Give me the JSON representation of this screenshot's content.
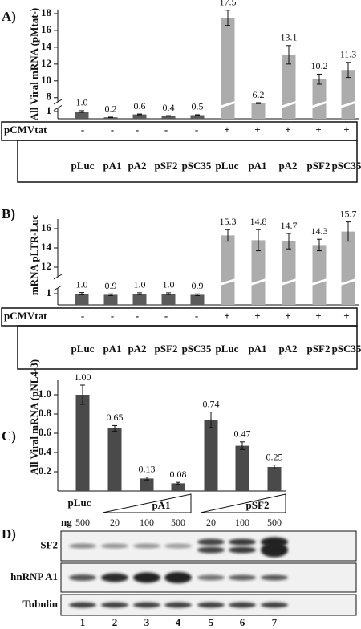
{
  "chart_data": [
    {
      "type": "bar",
      "panel": "A)",
      "y_label": "All Viral mRNA (pMtat-)",
      "categories": [
        "pLuc",
        "pA1",
        "pA2",
        "pSF2",
        "pSC35",
        "pLuc",
        "pA1",
        "pA2",
        "pSF2",
        "pSC35"
      ],
      "row_label": "pCMVtat",
      "row_values": [
        "-",
        "-",
        "-",
        "-",
        "-",
        "+",
        "+",
        "+",
        "+",
        "+"
      ],
      "values": [
        1.0,
        0.2,
        0.6,
        0.4,
        0.5,
        17.5,
        6.2,
        13.1,
        10.2,
        11.3
      ],
      "errors": [
        0.12,
        0.03,
        0.06,
        0.04,
        0.06,
        0.9,
        0.5,
        1.1,
        0.6,
        0.9
      ],
      "value_labels": [
        "1.0",
        "0.2",
        "0.6",
        "0.4",
        "0.5",
        "17.5",
        "6.2",
        "13.1",
        "10.2",
        "11.3"
      ],
      "colors": [
        "#5a5a5a",
        "#5a5a5a",
        "#5a5a5a",
        "#5a5a5a",
        "#5a5a5a",
        "#acacac",
        "#acacac",
        "#acacac",
        "#acacac",
        "#acacac"
      ],
      "ylim": [
        0,
        18.5
      ],
      "ybreak": [
        1.5,
        7.5
      ],
      "yticks": [
        1,
        8,
        10,
        12,
        14,
        16,
        18
      ]
    },
    {
      "type": "bar",
      "panel": "B)",
      "y_label": "mRNA pLTR-Luc",
      "categories": [
        "pLuc",
        "pA1",
        "pA2",
        "pSF2",
        "pSC35",
        "pLuc",
        "pA1",
        "pA2",
        "pSF2",
        "pSC35"
      ],
      "row_label": "pCMVtat",
      "row_values": [
        "-",
        "-",
        "-",
        "-",
        "-",
        "+",
        "+",
        "+",
        "+",
        "+"
      ],
      "values": [
        1.0,
        0.9,
        1.0,
        1.0,
        0.9,
        15.3,
        14.8,
        14.7,
        14.3,
        15.7
      ],
      "errors": [
        0.1,
        0.08,
        0.08,
        0.08,
        0.08,
        0.6,
        1.1,
        0.8,
        0.6,
        1.0
      ],
      "value_labels": [
        "1.0",
        "0.9",
        "1.0",
        "1.0",
        "0.9",
        "15.3",
        "14.8",
        "14.7",
        "14.3",
        "15.7"
      ],
      "colors": [
        "#5a5a5a",
        "#5a5a5a",
        "#5a5a5a",
        "#5a5a5a",
        "#5a5a5a",
        "#acacac",
        "#acacac",
        "#acacac",
        "#acacac",
        "#acacac"
      ],
      "ylim": [
        0,
        17
      ],
      "ybreak": [
        1.5,
        11
      ],
      "yticks": [
        1,
        12,
        14,
        16
      ]
    },
    {
      "type": "bar",
      "panel": "C)",
      "y_label": "All Viral mRNA (pNL4-3)",
      "x_label": "ng",
      "categories": [
        500,
        20,
        100,
        500,
        20,
        100,
        500
      ],
      "group_labels": [
        "pLuc",
        "pA1",
        "pSF2"
      ],
      "values": [
        1.0,
        0.65,
        0.13,
        0.08,
        0.74,
        0.47,
        0.25
      ],
      "errors": [
        0.1,
        0.03,
        0.015,
        0.01,
        0.08,
        0.04,
        0.02
      ],
      "value_labels": [
        "1.00",
        "0.65",
        "0.13",
        "0.08",
        "0.74",
        "0.47",
        "0.25"
      ],
      "colors": [
        "#4a4a4a",
        "#4a4a4a",
        "#4a4a4a",
        "#4a4a4a",
        "#4a4a4a",
        "#4a4a4a",
        "#4a4a4a"
      ],
      "ylim": [
        0,
        1.15
      ],
      "yticks": [
        0.2,
        0.4,
        0.6,
        0.8,
        {
          "value": 1,
          "label": "1.0"
        }
      ]
    }
  ],
  "blot": {
    "panel": "D)",
    "rows": [
      "SF2",
      "hnRNP A1",
      "Tubulin"
    ],
    "lanes": [
      1,
      2,
      3,
      4,
      5,
      6,
      7
    ]
  }
}
